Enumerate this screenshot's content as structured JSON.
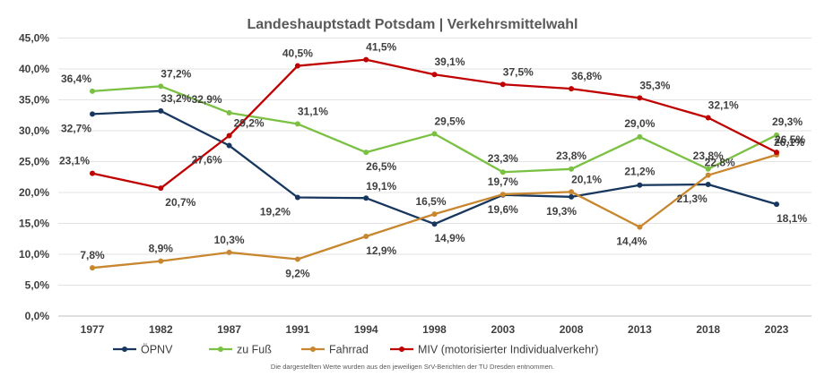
{
  "chart_data": {
    "type": "line",
    "title": "Landeshauptstadt Potsdam | Verkehrsmittelwahl",
    "categories": [
      "1977",
      "1982",
      "1987",
      "1991",
      "1994",
      "1998",
      "2003",
      "2008",
      "2013",
      "2018",
      "2023"
    ],
    "ylim": [
      0,
      45
    ],
    "yticks": [
      0,
      5,
      10,
      15,
      20,
      25,
      30,
      35,
      40,
      45
    ],
    "ytick_labels": [
      "0,0%",
      "5,0%",
      "10,0%",
      "15,0%",
      "20,0%",
      "25,0%",
      "30,0%",
      "35,0%",
      "40,0%",
      "45,0%"
    ],
    "grid": true,
    "legend_position": "bottom",
    "series": [
      {
        "name": "ÖPNV",
        "color": "#17375E",
        "values": [
          32.7,
          33.2,
          27.6,
          19.2,
          19.1,
          14.9,
          19.6,
          19.3,
          21.2,
          21.3,
          18.1
        ],
        "labels": [
          "32,7%",
          "33,2%",
          "27,6%",
          "19,2%",
          "19,1%",
          "14,9%",
          "19,6%",
          "19,3%",
          "21,2%",
          "21,3%",
          "18,1%"
        ]
      },
      {
        "name": "zu Fuß",
        "color": "#7AC143",
        "values": [
          36.4,
          37.2,
          32.9,
          31.1,
          26.5,
          29.5,
          23.3,
          23.8,
          29.0,
          23.8,
          29.3
        ],
        "labels": [
          "36,4%",
          "37,2%",
          "32,9%",
          "31,1%",
          "26,5%",
          "29,5%",
          "23,3%",
          "23,8%",
          "29,0%",
          "23,8%",
          "29,3%"
        ]
      },
      {
        "name": "Fahrrad",
        "color": "#C8862E",
        "values": [
          7.8,
          8.9,
          10.3,
          9.2,
          12.9,
          16.5,
          19.7,
          20.1,
          14.4,
          22.8,
          26.1
        ],
        "labels": [
          "7,8%",
          "8,9%",
          "10,3%",
          "9,2%",
          "12,9%",
          "16,5%",
          "19,7%",
          "20,1%",
          "14,4%",
          "22,8%",
          "26,1%"
        ]
      },
      {
        "name": "MIV (motorisierter Individualverkehr)",
        "color": "#C00000",
        "values": [
          23.1,
          20.7,
          29.2,
          40.5,
          41.5,
          39.1,
          37.5,
          36.8,
          35.3,
          32.1,
          26.5
        ],
        "labels": [
          "23,1%",
          "20,7%",
          "29,2%",
          "40,5%",
          "41,5%",
          "39,1%",
          "37,5%",
          "36,8%",
          "35,3%",
          "32,1%",
          "26,5%"
        ]
      }
    ],
    "footnote": "Die dargestellten Werte wurden aus den jeweiligen SrV-Berichten der TU Dresden entnommen."
  }
}
